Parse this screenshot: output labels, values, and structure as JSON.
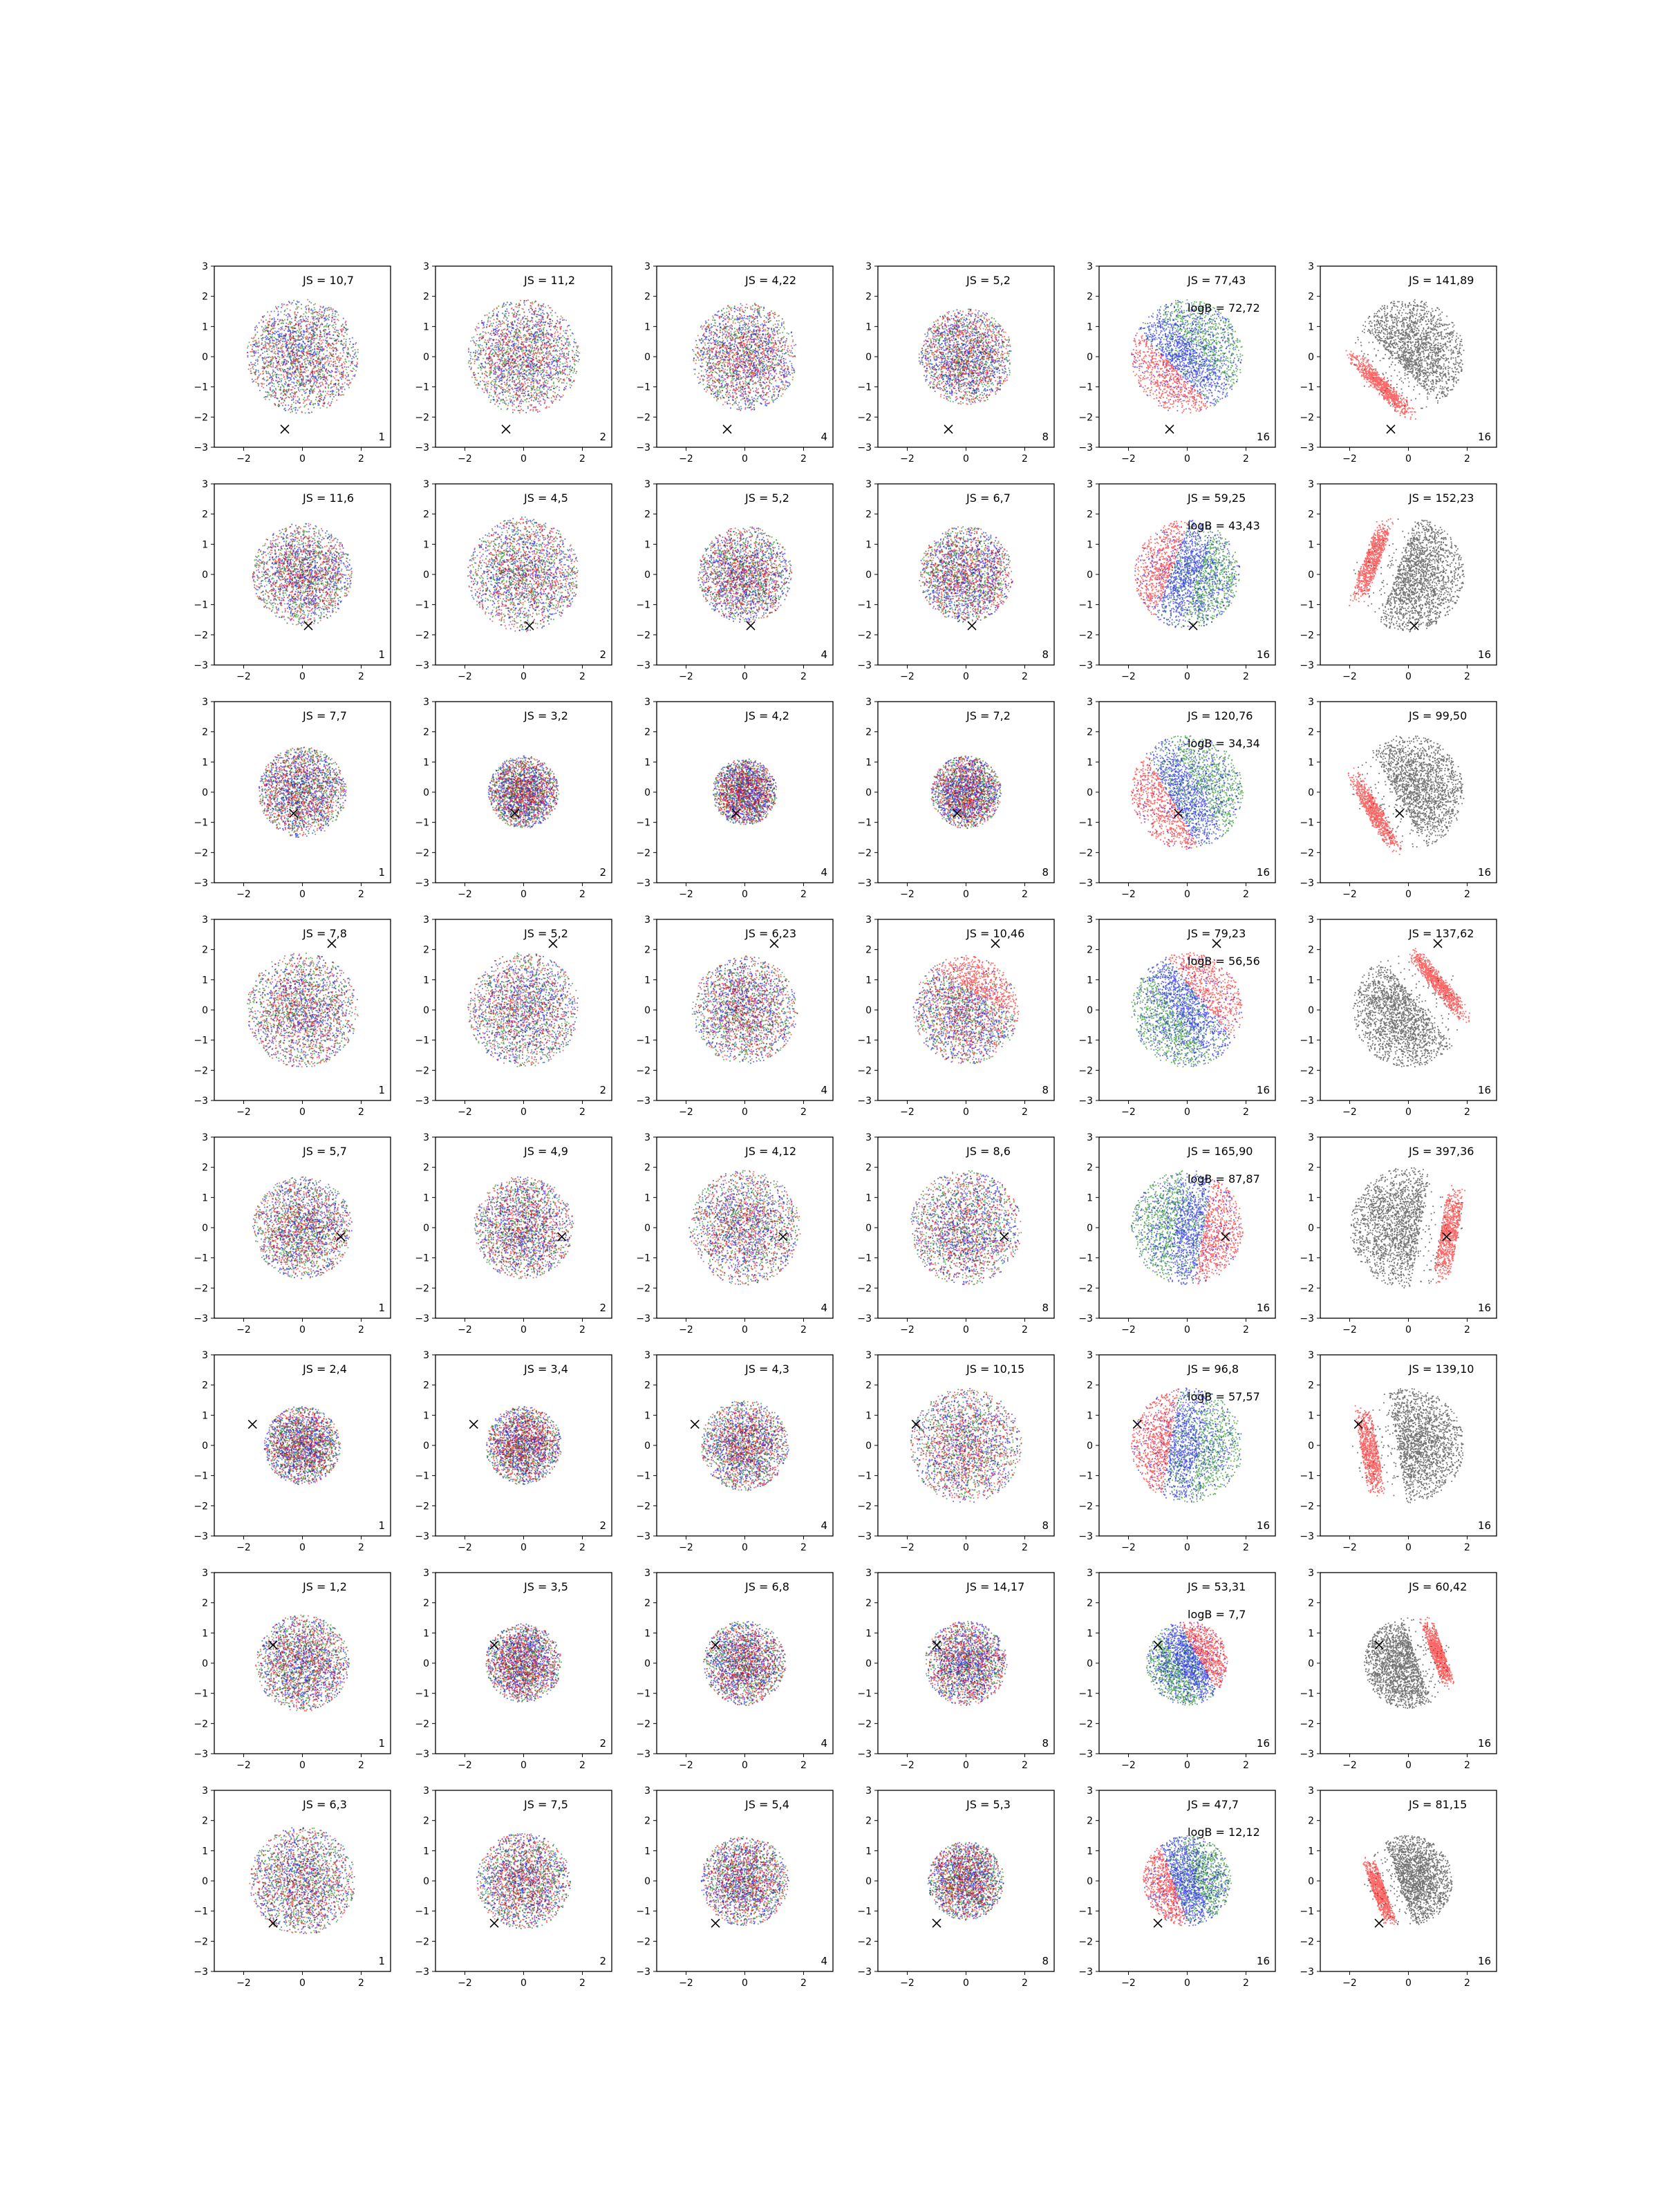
{
  "figure": {
    "axis_range": [
      -3,
      3
    ],
    "xticks": [
      -2,
      0,
      2
    ],
    "yticks": [
      3,
      2,
      1,
      0,
      -1,
      -2,
      -3
    ],
    "colors": {
      "red": "#ff0000",
      "green": "#008000",
      "blue": "#0000ff",
      "black": "#000000",
      "marker": "#000000"
    }
  },
  "chart_data": [
    {
      "type": "scatter",
      "row": 1,
      "col": 1,
      "js_label": "JS = 10,7",
      "corner_label": "1",
      "marker_x": -0.6,
      "marker_y": -2.4,
      "spread": 1.9,
      "pattern": "uniform"
    },
    {
      "type": "scatter",
      "row": 1,
      "col": 2,
      "js_label": "JS = 11,2",
      "corner_label": "2",
      "marker_x": -0.6,
      "marker_y": -2.4,
      "spread": 1.9,
      "pattern": "uniform"
    },
    {
      "type": "scatter",
      "row": 1,
      "col": 3,
      "js_label": "JS = 4,22",
      "corner_label": "4",
      "marker_x": -0.6,
      "marker_y": -2.4,
      "spread": 1.8,
      "pattern": "uniform"
    },
    {
      "type": "scatter",
      "row": 1,
      "col": 4,
      "js_label": "JS = 5,2",
      "corner_label": "8",
      "marker_x": -0.6,
      "marker_y": -2.4,
      "spread": 1.6,
      "pattern": "uniform"
    },
    {
      "type": "scatter",
      "row": 1,
      "col": 5,
      "js_label": "JS = 77,43",
      "logb_label": "logB = 72,72",
      "corner_label": "16",
      "marker_x": -0.6,
      "marker_y": -2.4,
      "spread": 1.9,
      "pattern": "crescent",
      "angle": 225
    },
    {
      "type": "scatter",
      "row": 1,
      "col": 6,
      "js_label": "JS = 141,89",
      "corner_label": "16",
      "marker_x": -0.6,
      "marker_y": -2.4,
      "spread": 1.9,
      "pattern": "crescent-black",
      "angle": 225
    },
    {
      "type": "scatter",
      "row": 2,
      "col": 1,
      "js_label": "JS = 11,6",
      "corner_label": "1",
      "marker_x": 0.2,
      "marker_y": -1.7,
      "spread": 1.7,
      "pattern": "uniform"
    },
    {
      "type": "scatter",
      "row": 2,
      "col": 2,
      "js_label": "JS = 4,5",
      "corner_label": "2",
      "marker_x": 0.2,
      "marker_y": -1.7,
      "spread": 1.9,
      "pattern": "uniform"
    },
    {
      "type": "scatter",
      "row": 2,
      "col": 3,
      "js_label": "JS = 5,2",
      "corner_label": "4",
      "marker_x": 0.2,
      "marker_y": -1.7,
      "spread": 1.6,
      "pattern": "uniform"
    },
    {
      "type": "scatter",
      "row": 2,
      "col": 4,
      "js_label": "JS = 6,7",
      "corner_label": "8",
      "marker_x": 0.2,
      "marker_y": -1.7,
      "spread": 1.6,
      "pattern": "uniform"
    },
    {
      "type": "scatter",
      "row": 2,
      "col": 5,
      "js_label": "JS = 59,25",
      "logb_label": "logB = 43,43",
      "corner_label": "16",
      "marker_x": 0.2,
      "marker_y": -1.7,
      "spread": 1.8,
      "pattern": "crescent",
      "angle": 160
    },
    {
      "type": "scatter",
      "row": 2,
      "col": 6,
      "js_label": "JS = 152,23",
      "corner_label": "16",
      "marker_x": 0.2,
      "marker_y": -1.7,
      "spread": 1.9,
      "pattern": "crescent-black",
      "angle": 160
    },
    {
      "type": "scatter",
      "row": 3,
      "col": 1,
      "js_label": "JS = 7,7",
      "corner_label": "1",
      "marker_x": -0.3,
      "marker_y": -0.7,
      "spread": 1.5,
      "pattern": "uniform"
    },
    {
      "type": "scatter",
      "row": 3,
      "col": 2,
      "js_label": "JS = 3,2",
      "corner_label": "2",
      "marker_x": -0.3,
      "marker_y": -0.7,
      "spread": 1.2,
      "pattern": "uniform"
    },
    {
      "type": "scatter",
      "row": 3,
      "col": 3,
      "js_label": "JS = 4,2",
      "corner_label": "4",
      "marker_x": -0.3,
      "marker_y": -0.7,
      "spread": 1.1,
      "pattern": "uniform"
    },
    {
      "type": "scatter",
      "row": 3,
      "col": 4,
      "js_label": "JS = 7,2",
      "corner_label": "8",
      "marker_x": -0.3,
      "marker_y": -0.7,
      "spread": 1.2,
      "pattern": "uniform"
    },
    {
      "type": "scatter",
      "row": 3,
      "col": 5,
      "js_label": "JS = 120,76",
      "logb_label": "logB = 34,34",
      "corner_label": "16",
      "marker_x": -0.3,
      "marker_y": -0.7,
      "spread": 1.9,
      "pattern": "crescent",
      "angle": 210
    },
    {
      "type": "scatter",
      "row": 3,
      "col": 6,
      "js_label": "JS = 99,50",
      "corner_label": "16",
      "marker_x": -0.3,
      "marker_y": -0.7,
      "spread": 1.9,
      "pattern": "crescent-black",
      "angle": 210
    },
    {
      "type": "scatter",
      "row": 4,
      "col": 1,
      "js_label": "JS = 7,8",
      "corner_label": "1",
      "marker_x": 1.0,
      "marker_y": 2.2,
      "spread": 1.9,
      "pattern": "uniform"
    },
    {
      "type": "scatter",
      "row": 4,
      "col": 2,
      "js_label": "JS = 5,2",
      "corner_label": "2",
      "marker_x": 1.0,
      "marker_y": 2.2,
      "spread": 1.9,
      "pattern": "uniform"
    },
    {
      "type": "scatter",
      "row": 4,
      "col": 3,
      "js_label": "JS = 6,23",
      "corner_label": "4",
      "marker_x": 1.0,
      "marker_y": 2.2,
      "spread": 1.8,
      "pattern": "uniform"
    },
    {
      "type": "scatter",
      "row": 4,
      "col": 4,
      "js_label": "JS = 10,46",
      "corner_label": "8",
      "marker_x": 1.0,
      "marker_y": 2.2,
      "spread": 1.8,
      "pattern": "crescent-mild",
      "angle": 60
    },
    {
      "type": "scatter",
      "row": 4,
      "col": 5,
      "js_label": "JS = 79,23",
      "logb_label": "logB = 56,56",
      "corner_label": "16",
      "marker_x": 1.0,
      "marker_y": 2.2,
      "spread": 1.9,
      "pattern": "crescent",
      "angle": 40
    },
    {
      "type": "scatter",
      "row": 4,
      "col": 6,
      "js_label": "JS = 137,62",
      "corner_label": "16",
      "marker_x": 1.0,
      "marker_y": 2.2,
      "spread": 1.9,
      "pattern": "crescent-black",
      "angle": 40
    },
    {
      "type": "scatter",
      "row": 5,
      "col": 1,
      "js_label": "JS = 5,7",
      "corner_label": "1",
      "marker_x": 1.3,
      "marker_y": -0.3,
      "spread": 1.7,
      "pattern": "uniform"
    },
    {
      "type": "scatter",
      "row": 5,
      "col": 2,
      "js_label": "JS = 4,9",
      "corner_label": "2",
      "marker_x": 1.3,
      "marker_y": -0.3,
      "spread": 1.7,
      "pattern": "uniform"
    },
    {
      "type": "scatter",
      "row": 5,
      "col": 3,
      "js_label": "JS = 4,12",
      "corner_label": "4",
      "marker_x": 1.3,
      "marker_y": -0.3,
      "spread": 1.9,
      "pattern": "uniform"
    },
    {
      "type": "scatter",
      "row": 5,
      "col": 4,
      "js_label": "JS = 8,6",
      "corner_label": "8",
      "marker_x": 1.3,
      "marker_y": -0.3,
      "spread": 1.9,
      "pattern": "uniform"
    },
    {
      "type": "scatter",
      "row": 5,
      "col": 5,
      "js_label": "JS = 165,90",
      "logb_label": "logB = 87,87",
      "corner_label": "16",
      "marker_x": 1.3,
      "marker_y": -0.3,
      "spread": 1.9,
      "pattern": "crescent",
      "angle": -10
    },
    {
      "type": "scatter",
      "row": 5,
      "col": 6,
      "js_label": "JS = 397,36",
      "corner_label": "16",
      "marker_x": 1.3,
      "marker_y": -0.3,
      "spread": 2.0,
      "pattern": "crescent-black",
      "angle": -10
    },
    {
      "type": "scatter",
      "row": 6,
      "col": 1,
      "js_label": "JS = 2,4",
      "corner_label": "1",
      "marker_x": -1.7,
      "marker_y": 0.7,
      "spread": 1.3,
      "pattern": "uniform"
    },
    {
      "type": "scatter",
      "row": 6,
      "col": 2,
      "js_label": "JS = 3,4",
      "corner_label": "2",
      "marker_x": -1.7,
      "marker_y": 0.7,
      "spread": 1.3,
      "pattern": "uniform"
    },
    {
      "type": "scatter",
      "row": 6,
      "col": 3,
      "js_label": "JS = 4,3",
      "corner_label": "4",
      "marker_x": -1.7,
      "marker_y": 0.7,
      "spread": 1.5,
      "pattern": "uniform"
    },
    {
      "type": "scatter",
      "row": 6,
      "col": 4,
      "js_label": "JS = 10,15",
      "corner_label": "8",
      "marker_x": -1.7,
      "marker_y": 0.7,
      "spread": 1.9,
      "pattern": "uniform"
    },
    {
      "type": "scatter",
      "row": 6,
      "col": 5,
      "js_label": "JS = 96,8",
      "logb_label": "logB = 57,57",
      "corner_label": "16",
      "marker_x": -1.7,
      "marker_y": 0.7,
      "spread": 1.9,
      "pattern": "crescent",
      "angle": 170
    },
    {
      "type": "scatter",
      "row": 6,
      "col": 6,
      "js_label": "JS = 139,10",
      "corner_label": "16",
      "marker_x": -1.7,
      "marker_y": 0.7,
      "spread": 1.9,
      "pattern": "crescent-black",
      "angle": 190
    },
    {
      "type": "scatter",
      "row": 7,
      "col": 1,
      "js_label": "JS = 1,2",
      "corner_label": "1",
      "marker_x": -1.0,
      "marker_y": 0.6,
      "spread": 1.6,
      "pattern": "uniform"
    },
    {
      "type": "scatter",
      "row": 7,
      "col": 2,
      "js_label": "JS = 3,5",
      "corner_label": "2",
      "marker_x": -1.0,
      "marker_y": 0.6,
      "spread": 1.3,
      "pattern": "uniform"
    },
    {
      "type": "scatter",
      "row": 7,
      "col": 3,
      "js_label": "JS = 6,8",
      "corner_label": "4",
      "marker_x": -1.0,
      "marker_y": 0.6,
      "spread": 1.4,
      "pattern": "uniform"
    },
    {
      "type": "scatter",
      "row": 7,
      "col": 4,
      "js_label": "JS = 14,17",
      "corner_label": "8",
      "marker_x": -1.0,
      "marker_y": 0.6,
      "spread": 1.4,
      "pattern": "uniform"
    },
    {
      "type": "scatter",
      "row": 7,
      "col": 5,
      "js_label": "JS = 53,31",
      "logb_label": "logB = 7,7",
      "corner_label": "16",
      "marker_x": -1.0,
      "marker_y": 0.6,
      "spread": 1.4,
      "pattern": "crescent",
      "angle": 30
    },
    {
      "type": "scatter",
      "row": 7,
      "col": 6,
      "js_label": "JS = 60,42",
      "corner_label": "16",
      "marker_x": -1.0,
      "marker_y": 0.6,
      "spread": 1.5,
      "pattern": "crescent-black",
      "angle": 20
    },
    {
      "type": "scatter",
      "row": 8,
      "col": 1,
      "js_label": "JS = 6,3",
      "corner_label": "1",
      "marker_x": -1.0,
      "marker_y": -1.4,
      "spread": 1.8,
      "pattern": "uniform"
    },
    {
      "type": "scatter",
      "row": 8,
      "col": 2,
      "js_label": "JS = 7,5",
      "corner_label": "2",
      "marker_x": -1.0,
      "marker_y": -1.4,
      "spread": 1.6,
      "pattern": "uniform"
    },
    {
      "type": "scatter",
      "row": 8,
      "col": 3,
      "js_label": "JS = 5,4",
      "corner_label": "4",
      "marker_x": -1.0,
      "marker_y": -1.4,
      "spread": 1.5,
      "pattern": "uniform"
    },
    {
      "type": "scatter",
      "row": 8,
      "col": 4,
      "js_label": "JS = 5,3",
      "corner_label": "8",
      "marker_x": -1.0,
      "marker_y": -1.4,
      "spread": 1.3,
      "pattern": "uniform"
    },
    {
      "type": "scatter",
      "row": 8,
      "col": 5,
      "js_label": "JS = 47,7",
      "logb_label": "logB = 12,12",
      "corner_label": "16",
      "marker_x": -1.0,
      "marker_y": -1.4,
      "spread": 1.5,
      "pattern": "crescent",
      "angle": 200
    },
    {
      "type": "scatter",
      "row": 8,
      "col": 6,
      "js_label": "JS = 81,15",
      "corner_label": "16",
      "marker_x": -1.0,
      "marker_y": -1.4,
      "spread": 1.5,
      "pattern": "crescent-black",
      "angle": 200
    }
  ]
}
